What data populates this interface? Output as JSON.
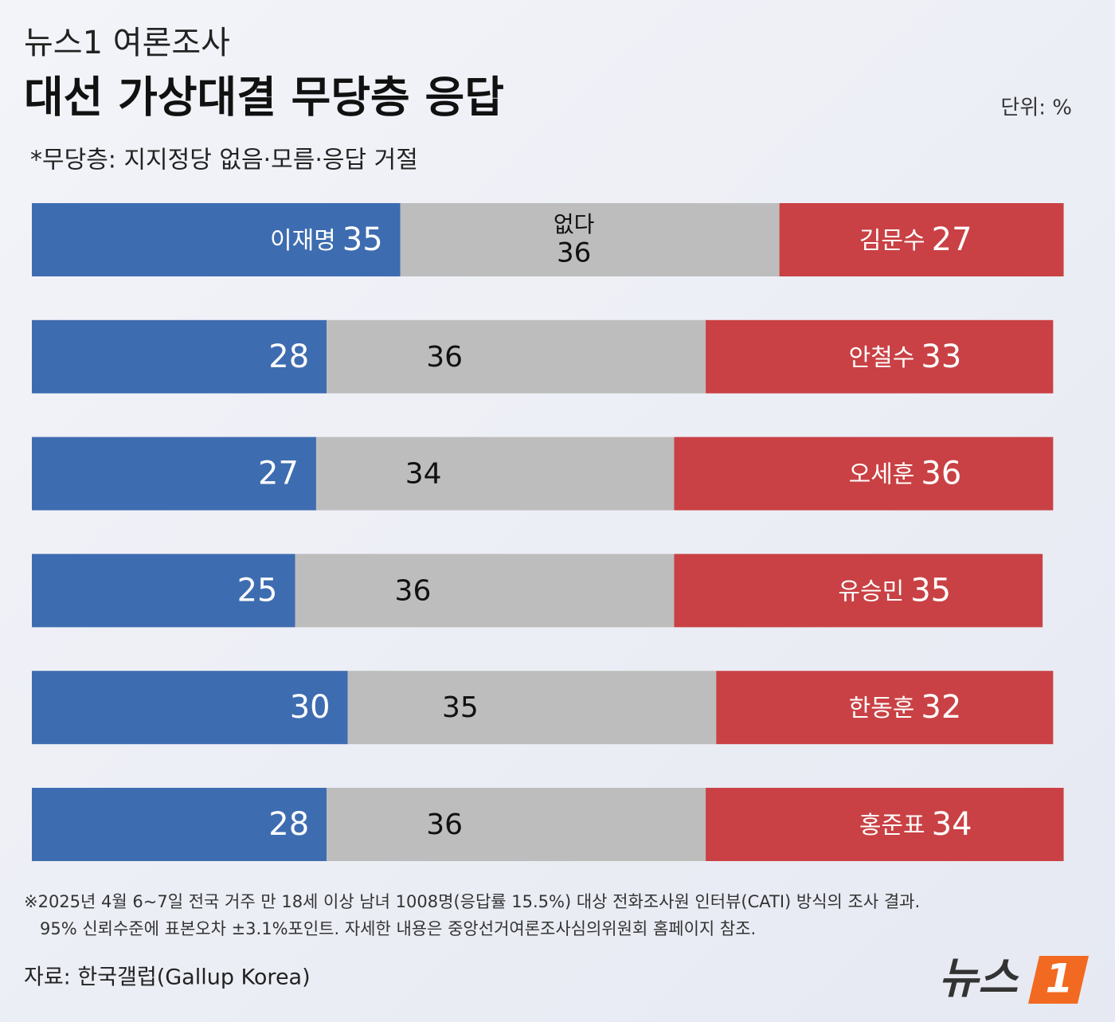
{
  "chart_data": {
    "type": "stacked_barh",
    "kicker": "뉴스1 여론조사",
    "title": "대선 가상대결 무당층 응답",
    "unit": "단위: %",
    "subtitle": "*무당층: 지지정당 없음·모름·응답 거절",
    "categories": [
      "김문수",
      "안철수",
      "오세훈",
      "유승민",
      "한동훈",
      "홍준표"
    ],
    "series": [
      {
        "name": "이재명",
        "color": "#3e6cb0",
        "values": [
          35,
          28,
          27,
          25,
          30,
          28
        ]
      },
      {
        "name": "없다",
        "color": "#bdbdbd",
        "values": [
          36,
          36,
          34,
          36,
          35,
          36
        ]
      },
      {
        "color": "#c94144",
        "values": [
          27,
          33,
          36,
          35,
          32,
          34
        ]
      }
    ],
    "xlim": [
      0,
      100
    ],
    "notes": [
      "※2025년 4월 6~7일 전국 거주 만 18세 이상 남녀 1008명(응답률 15.5%) 대상 전화조사원 인터뷰(CATI) 방식의 조사 결과.",
      "95% 신뢰수준에 표본오차 ±3.1%포인트. 자세한 내용은 중앙선거여론조사심의위원회 홈페이지 참조."
    ],
    "source": "자료: 한국갤럽(Gallup Korea)",
    "logo": {
      "text": "뉴스",
      "mark": "1"
    }
  }
}
